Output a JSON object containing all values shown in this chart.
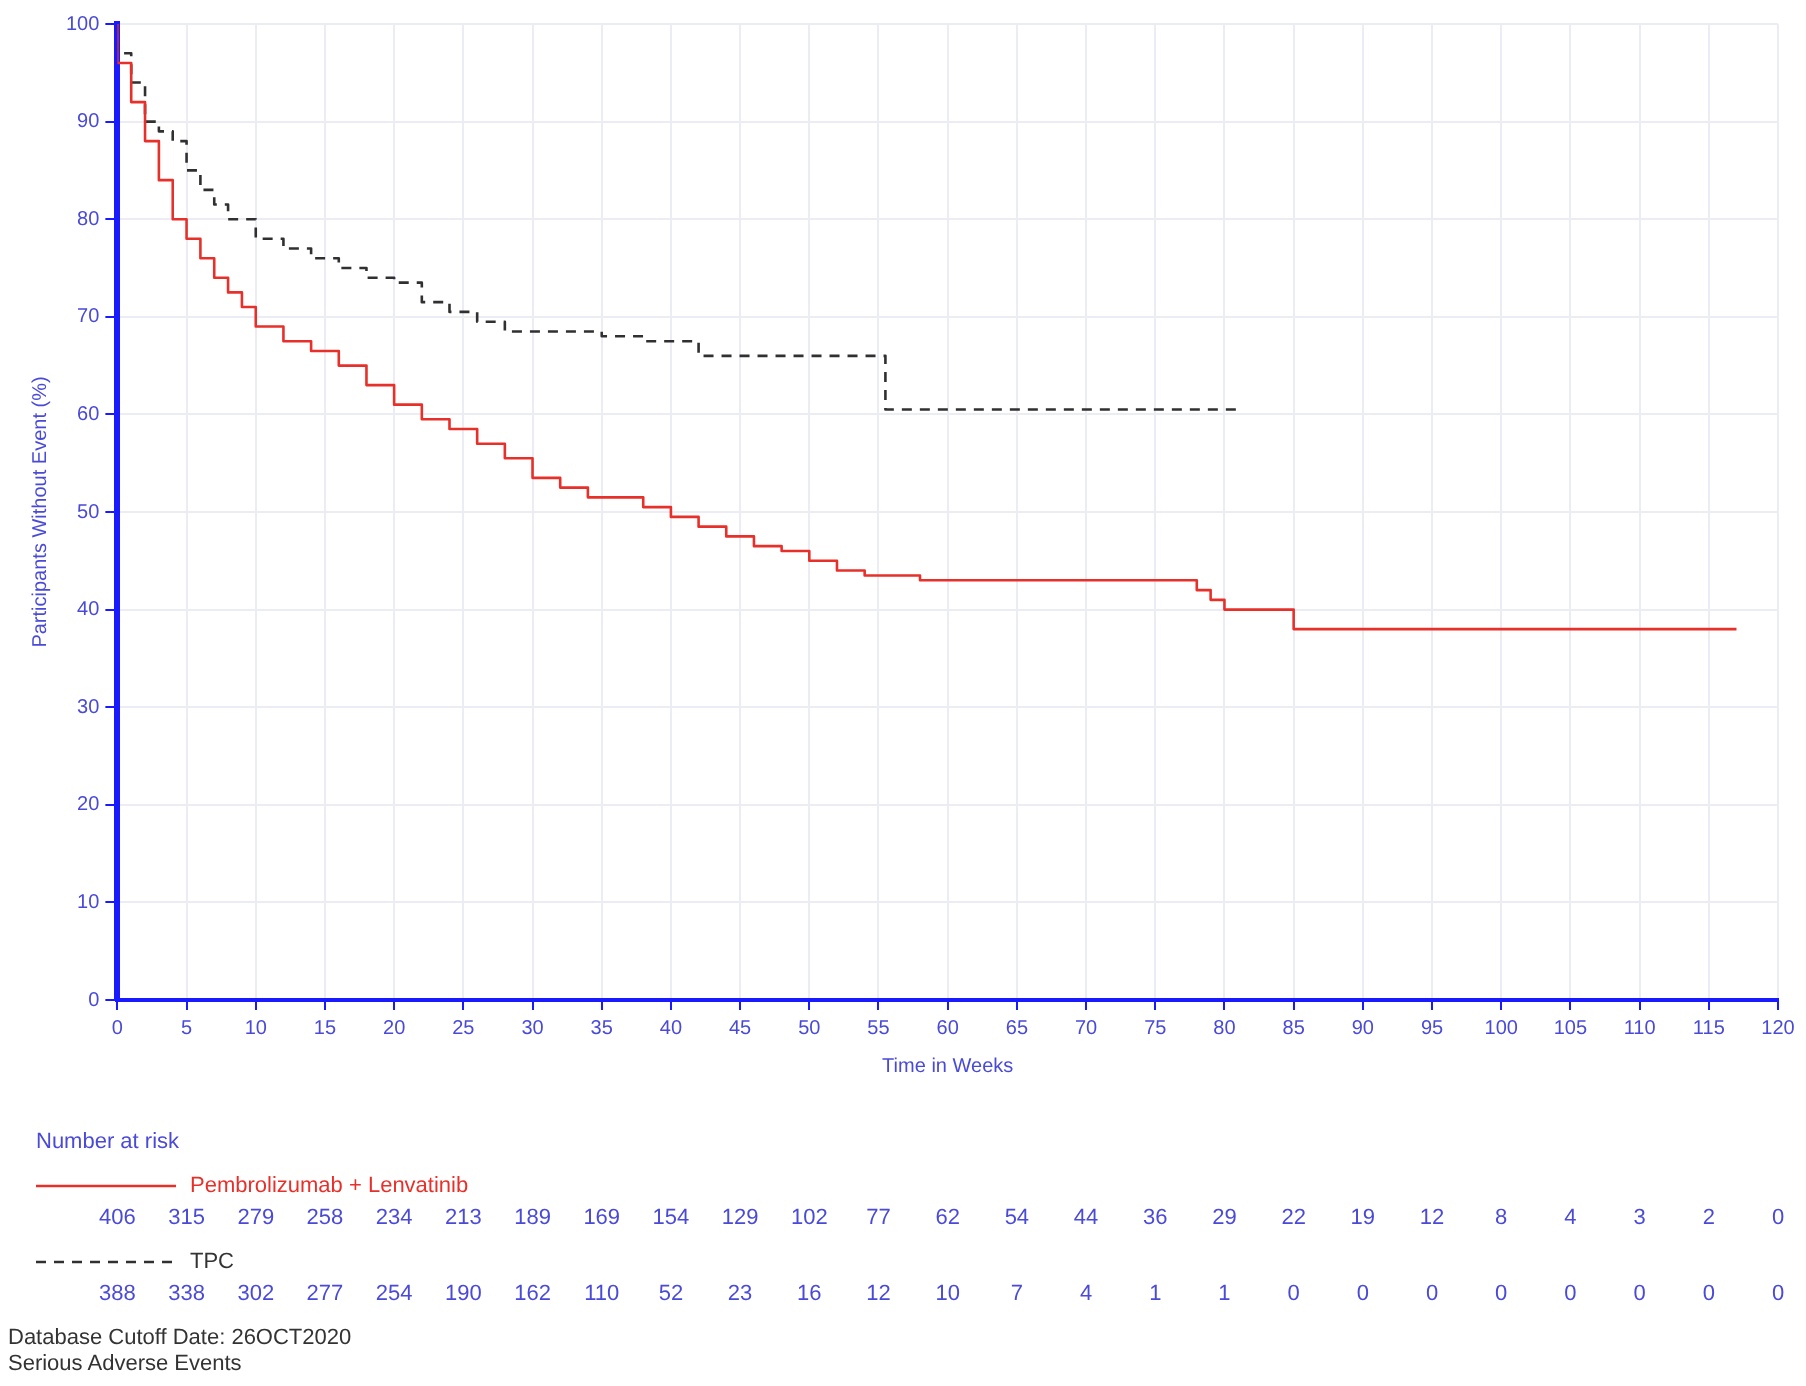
{
  "chart_data": {
    "type": "step",
    "xlabel": "Time in Weeks",
    "ylabel": "Participants Without Event (%)",
    "xlim": [
      0,
      120
    ],
    "xticks": [
      0,
      5,
      10,
      15,
      20,
      25,
      30,
      35,
      40,
      45,
      50,
      55,
      60,
      65,
      70,
      75,
      80,
      85,
      90,
      95,
      100,
      105,
      110,
      115,
      120
    ],
    "ylim": [
      0,
      100
    ],
    "yticks": [
      0,
      10,
      20,
      30,
      40,
      50,
      60,
      70,
      80,
      90,
      100
    ],
    "grid": true,
    "legend": "bottom",
    "series": [
      {
        "name": "Pembrolizumab + Lenvatinib",
        "color": "#e8302a",
        "line_style": "solid",
        "x": [
          0,
          1,
          2,
          3,
          4,
          5,
          6,
          7,
          8,
          9,
          10,
          12,
          14,
          16,
          18,
          20,
          22,
          24,
          26,
          28,
          30,
          32,
          34,
          36,
          38,
          40,
          42,
          44,
          46,
          48,
          50,
          52,
          54,
          56,
          58,
          60,
          62,
          70,
          78,
          79,
          80,
          81,
          85,
          85.5,
          117
        ],
        "values": [
          100,
          96,
          92,
          88,
          84,
          80,
          78,
          76,
          74,
          72.5,
          71,
          69,
          67.5,
          66.5,
          65,
          63,
          61,
          59.5,
          58.5,
          57,
          55.5,
          53.5,
          52.5,
          51.5,
          51.5,
          50.5,
          49.5,
          48.5,
          47.5,
          46.5,
          46,
          45,
          44,
          43.5,
          43.5,
          43,
          43,
          43,
          43,
          42,
          41,
          40,
          40,
          38,
          38
        ]
      },
      {
        "name": "TPC",
        "color": "#303030",
        "line_style": "dashed",
        "x": [
          0,
          1,
          2,
          3,
          4,
          5,
          6,
          7,
          8,
          10,
          12,
          14,
          16,
          18,
          20,
          22,
          24,
          26,
          28,
          30,
          35,
          38,
          42,
          42.5,
          55.5,
          56,
          81
        ],
        "values": [
          100,
          97,
          94,
          90,
          89,
          88,
          85,
          83,
          81.5,
          80,
          78,
          77,
          76,
          75,
          74,
          73.5,
          71.5,
          70.5,
          69.5,
          68.5,
          68.5,
          68,
          67.5,
          66,
          66,
          60.5,
          60.5
        ]
      }
    ],
    "annotations": [
      "Number at risk",
      "406",
      "315",
      "279",
      "258",
      "234",
      "213",
      "189",
      "169",
      "154",
      "129",
      "102",
      "77",
      "62",
      "54",
      "44",
      "36",
      "29",
      "22",
      "19",
      "12",
      "8",
      "4",
      "3",
      "2",
      "0",
      "388",
      "338",
      "302",
      "277",
      "254",
      "190",
      "162",
      "110",
      "52",
      "23",
      "16",
      "12",
      "10",
      "7",
      "4",
      "1",
      "1",
      "0",
      "0",
      "0",
      "0",
      "0",
      "0",
      "0",
      "0",
      "Database Cutoff Date: 26OCT2020",
      "Serious Adverse Events"
    ]
  }
}
